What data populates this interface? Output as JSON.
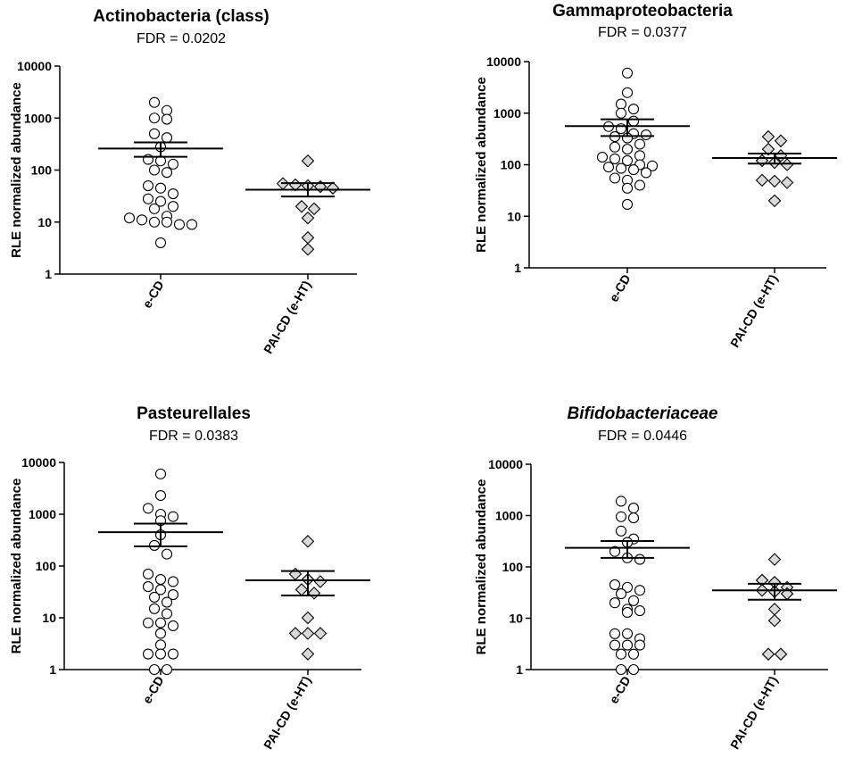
{
  "chart_data": [
    {
      "type": "scatter",
      "title": "Actinobacteria (class)",
      "title_italic": false,
      "fdr_label": "FDR = 0.0202",
      "ylabel": "RLE normalized abundance",
      "yscale": "log",
      "ylim": [
        1,
        10000
      ],
      "yticks": [
        "1",
        "10",
        "100",
        "1000",
        "10000"
      ],
      "categories": [
        "e-CD",
        "PAI-CD (e-HT)"
      ],
      "series": [
        {
          "name": "e-CD",
          "marker": "circle",
          "values": [
            2000,
            1400,
            1000,
            950,
            500,
            420,
            280,
            160,
            150,
            130,
            100,
            90,
            50,
            45,
            35,
            28,
            25,
            20,
            18,
            13,
            12,
            11,
            10,
            10,
            9,
            9,
            4
          ],
          "mean": 260,
          "sem_low": 180,
          "sem_high": 340
        },
        {
          "name": "PAI-CD (e-HT)",
          "marker": "diamond",
          "values": [
            150,
            55,
            52,
            50,
            48,
            45,
            20,
            18,
            12,
            5,
            3
          ],
          "mean": 42,
          "sem_low": 31,
          "sem_high": 56
        }
      ]
    },
    {
      "type": "scatter",
      "title": "Gammaproteobacteria",
      "title_italic": false,
      "fdr_label": "FDR = 0.0377",
      "ylabel": "RLE normalized abundance",
      "yscale": "log",
      "ylim": [
        1,
        10000
      ],
      "yticks": [
        "1",
        "10",
        "100",
        "1000",
        "10000"
      ],
      "categories": [
        "e-CD",
        "PAI-CD (e-HT)"
      ],
      "series": [
        {
          "name": "e-CD",
          "marker": "circle",
          "values": [
            6000,
            2500,
            1500,
            1200,
            1000,
            700,
            550,
            500,
            400,
            380,
            350,
            330,
            250,
            220,
            200,
            150,
            140,
            130,
            120,
            100,
            95,
            90,
            85,
            80,
            70,
            55,
            50,
            40,
            35,
            17
          ],
          "mean": 560,
          "sem_low": 360,
          "sem_high": 760
        },
        {
          "name": "PAI-CD (e-HT)",
          "marker": "diamond",
          "values": [
            350,
            290,
            200,
            150,
            120,
            110,
            100,
            50,
            48,
            45,
            20
          ],
          "mean": 135,
          "sem_low": 105,
          "sem_high": 165
        }
      ]
    },
    {
      "type": "scatter",
      "title": "Pasteurellales",
      "title_italic": false,
      "fdr_label": "FDR = 0.0383",
      "ylabel": "RLE normalized abundance",
      "yscale": "log",
      "ylim": [
        1,
        10000
      ],
      "yticks": [
        "1",
        "10",
        "100",
        "1000",
        "10000"
      ],
      "categories": [
        "e-CD",
        "PAI-CD (e-HT)"
      ],
      "series": [
        {
          "name": "e-CD",
          "marker": "circle",
          "values": [
            6000,
            2300,
            1300,
            1000,
            900,
            750,
            400,
            250,
            170,
            70,
            55,
            50,
            40,
            35,
            28,
            25,
            20,
            15,
            12,
            8,
            8,
            7,
            5,
            3,
            2,
            2,
            2,
            1,
            1
          ],
          "mean": 450,
          "sem_low": 240,
          "sem_high": 660
        },
        {
          "name": "PAI-CD (e-HT)",
          "marker": "diamond",
          "values": [
            300,
            70,
            55,
            50,
            35,
            30,
            10,
            5,
            5,
            5,
            2
          ],
          "mean": 53,
          "sem_low": 27,
          "sem_high": 80
        }
      ]
    },
    {
      "type": "scatter",
      "title": "Bifidobacteriaceae",
      "title_italic": true,
      "fdr_label": "FDR = 0.0446",
      "ylabel": "RLE normalized abundance",
      "yscale": "log",
      "ylim": [
        1,
        10000
      ],
      "yticks": [
        "1",
        "10",
        "100",
        "1000",
        "10000"
      ],
      "categories": [
        "e-CD",
        "PAI-CD (e-HT)"
      ],
      "series": [
        {
          "name": "e-CD",
          "marker": "circle",
          "values": [
            1900,
            1400,
            950,
            900,
            500,
            350,
            300,
            200,
            150,
            140,
            45,
            40,
            35,
            30,
            22,
            20,
            15,
            14,
            13,
            5,
            5,
            4,
            3,
            3,
            3,
            2,
            2,
            1,
            1
          ],
          "mean": 235,
          "sem_low": 150,
          "sem_high": 320
        },
        {
          "name": "PAI-CD (e-HT)",
          "marker": "diamond",
          "values": [
            140,
            55,
            50,
            40,
            35,
            33,
            30,
            15,
            9,
            2,
            2
          ],
          "mean": 35,
          "sem_low": 23,
          "sem_high": 47
        }
      ]
    }
  ]
}
